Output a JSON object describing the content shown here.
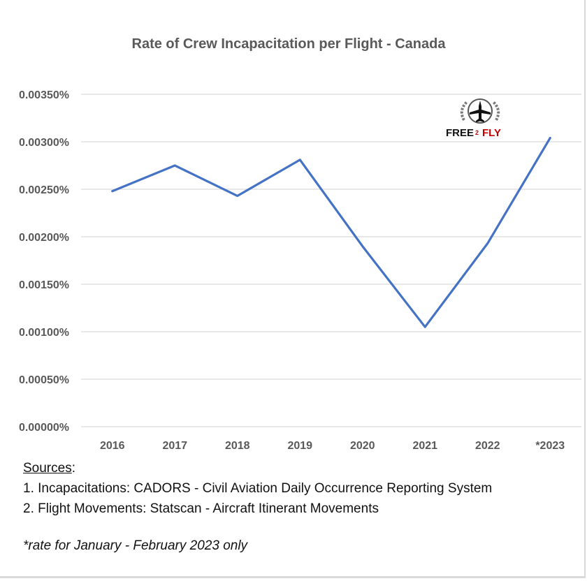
{
  "chart_data": {
    "type": "line",
    "title": "Rate of Crew Incapacitation per Flight - Canada",
    "categories": [
      "2016",
      "2017",
      "2018",
      "2019",
      "2020",
      "2021",
      "2022",
      "*2023"
    ],
    "series": [
      {
        "values": [
          0.00248,
          0.00275,
          0.00243,
          0.00281,
          0.0019,
          0.00105,
          0.00193,
          0.00304
        ],
        "color": "#4472c4"
      }
    ],
    "y_ticks": [
      "0.00000%",
      "0.00050%",
      "0.00100%",
      "0.00150%",
      "0.00200%",
      "0.00250%",
      "0.00300%",
      "0.00350%"
    ],
    "ylim": [
      0,
      0.0035
    ],
    "y_unit": "%",
    "xlabel": "",
    "ylabel": "",
    "grid": true,
    "legend": "none"
  },
  "notes": {
    "sources_heading": "Sources",
    "sources_colon": ":",
    "source_1": "1. Incapacitations: CADORS - Civil Aviation Daily Occurrence Reporting System",
    "source_2": "2. Flight Movements: Statscan - Aircraft Itinerant Movements",
    "footnote": "*rate for January - February 2023 only"
  },
  "logo": {
    "text_left": "FREE",
    "text_mid": "2",
    "text_right": "FLY",
    "icon": "airplane-wreath-icon"
  }
}
